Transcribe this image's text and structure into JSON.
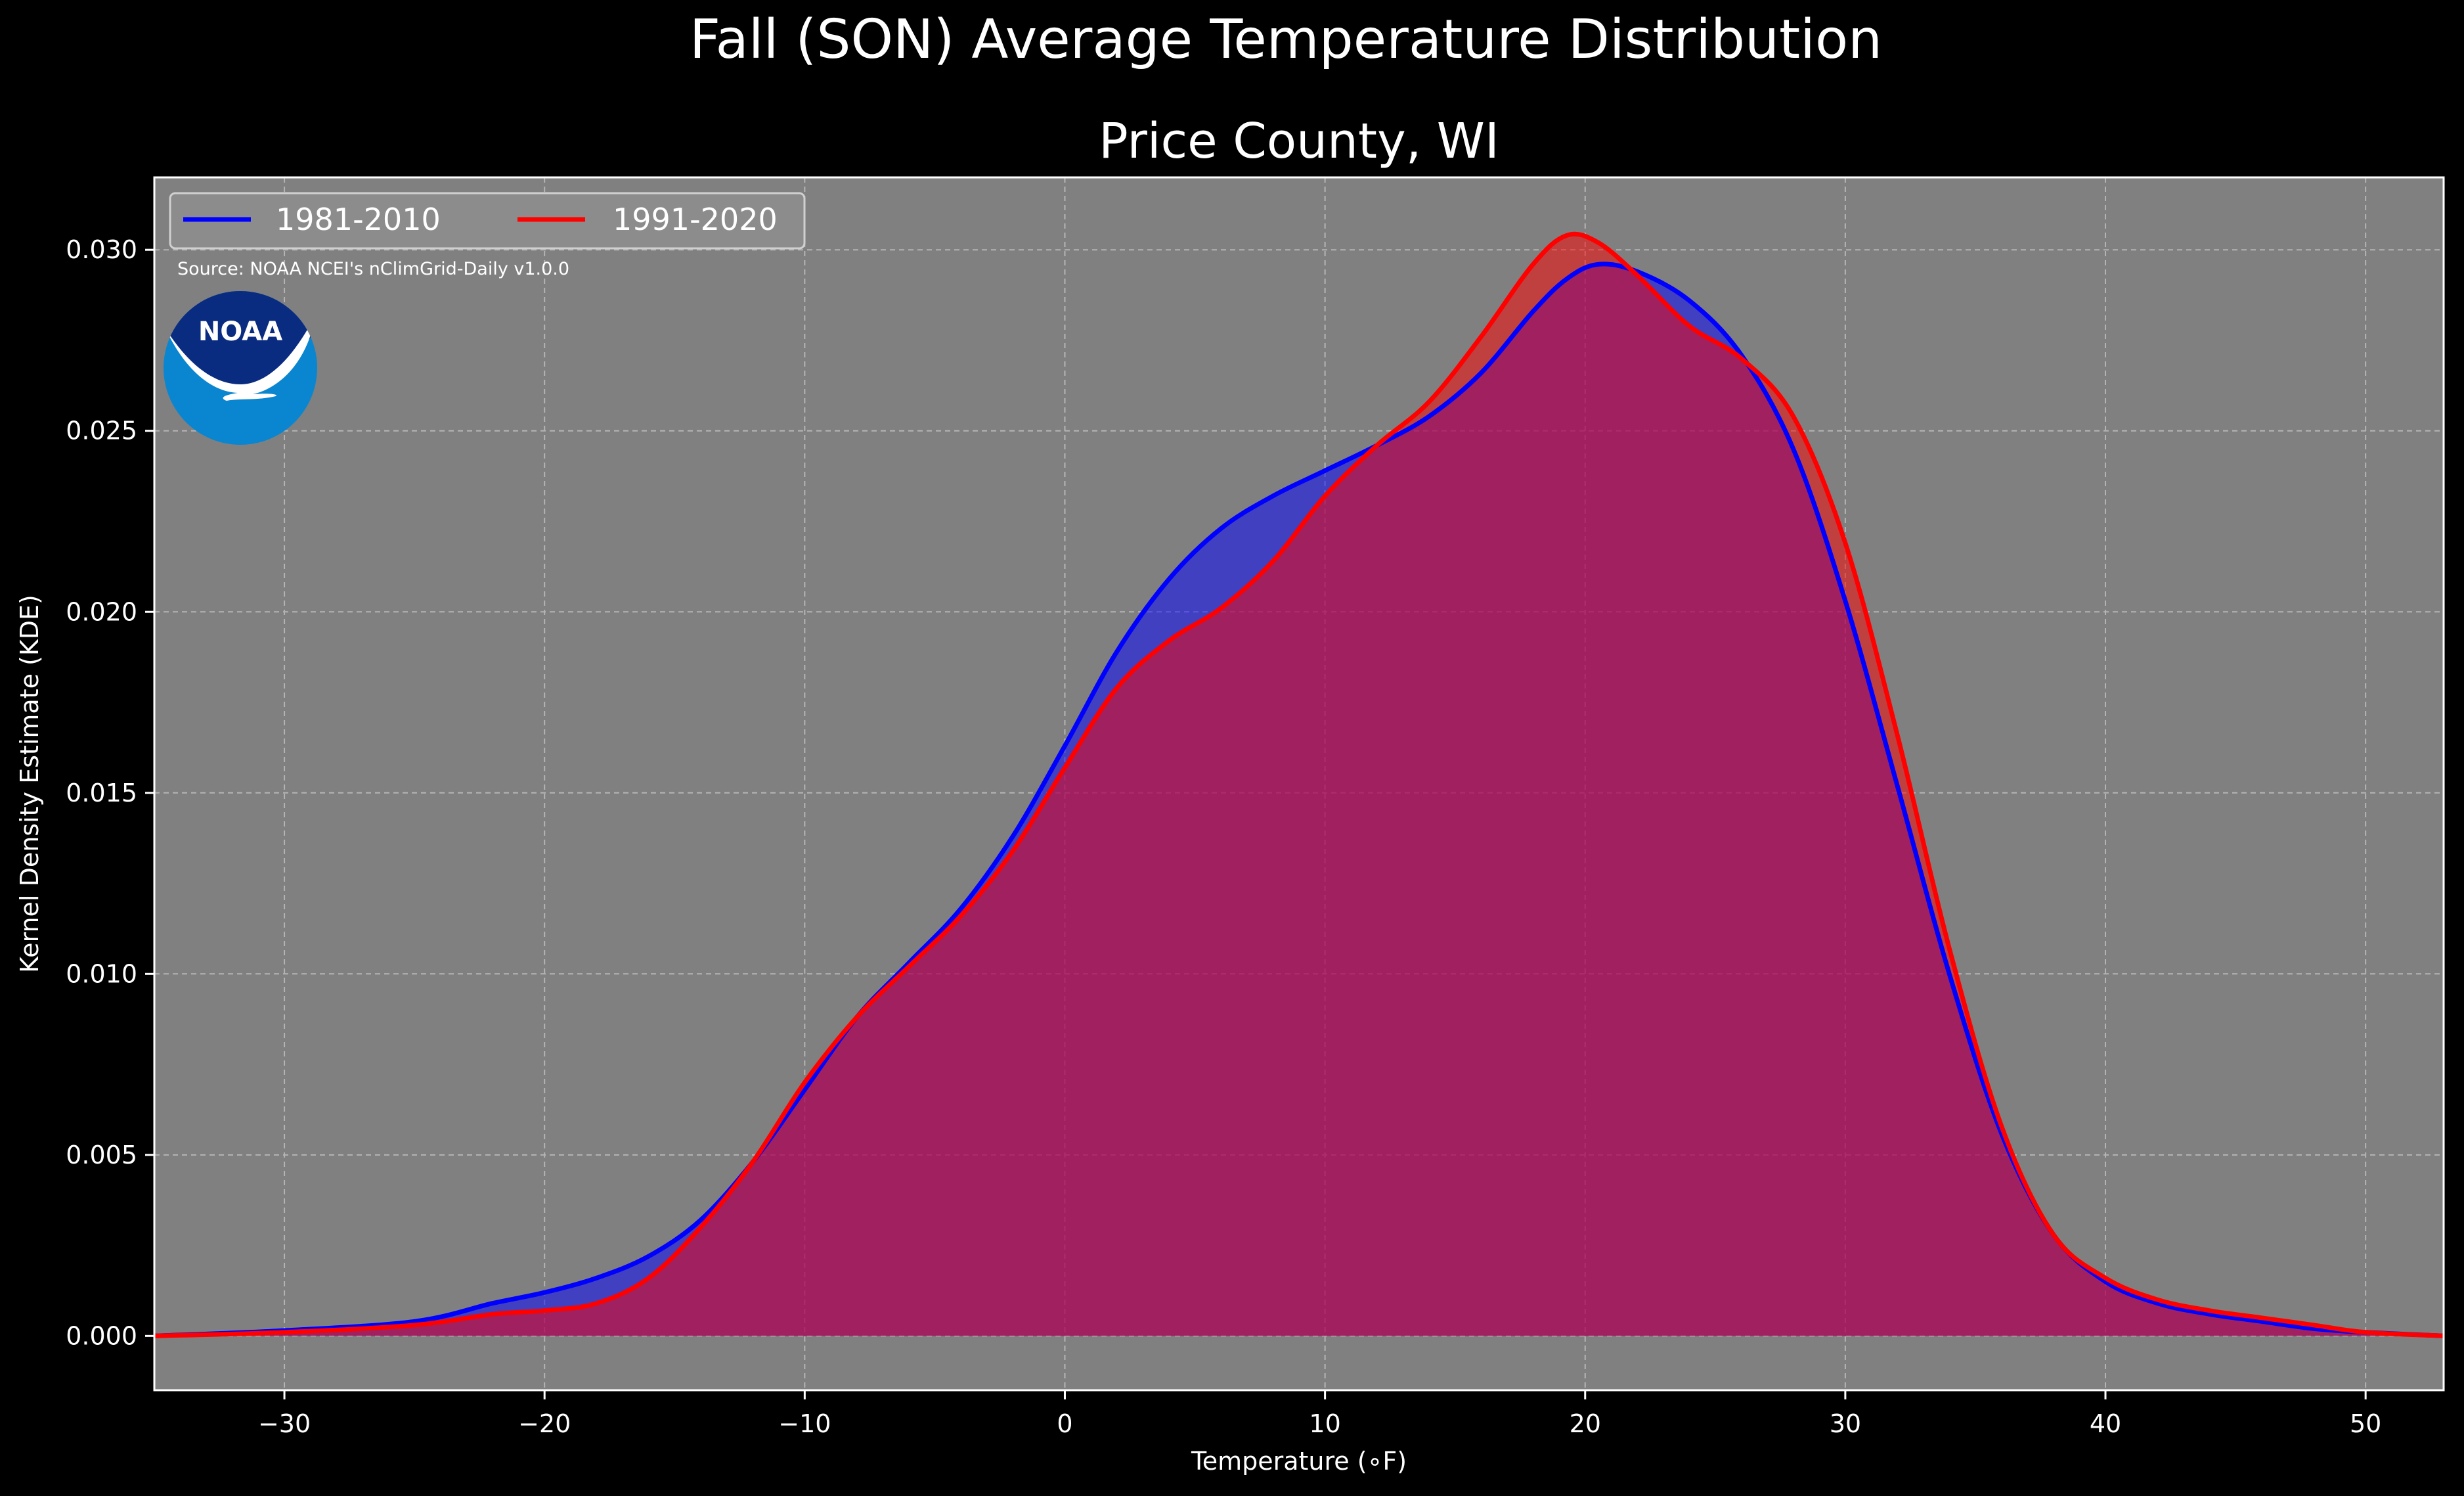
{
  "chart_data": {
    "type": "area",
    "suptitle": "Fall (SON) Average Temperature Distribution",
    "title": "Price County, WI",
    "xlabel": "Temperature ($^\\circ$F)",
    "xlabel_display": "Temperature (∘F)",
    "ylabel": "Kernel Density Estimate (KDE)",
    "xlim": [
      -35,
      53
    ],
    "ylim": [
      -0.0015,
      0.032
    ],
    "xticks": [
      -30,
      -20,
      -10,
      0,
      10,
      20,
      30,
      40,
      50
    ],
    "xtick_labels": [
      "−30",
      "−20",
      "−10",
      "0",
      "10",
      "20",
      "30",
      "40",
      "50"
    ],
    "yticks": [
      0.0,
      0.005,
      0.01,
      0.015,
      0.02,
      0.025,
      0.03
    ],
    "ytick_labels": [
      "0.000",
      "0.005",
      "0.010",
      "0.015",
      "0.020",
      "0.025",
      "0.030"
    ],
    "grid": true,
    "legend_position": "top-left",
    "source_note": "Source: NOAA NCEI's nClimGrid-Daily v1.0.0",
    "logo_text": "NOAA",
    "colors": {
      "background": "#000000",
      "plot_background": "#808080",
      "series_1981": "#0000ff",
      "series_1991": "#ff0000",
      "text": "#ffffff"
    },
    "x": [
      -35,
      -30,
      -25,
      -22,
      -20,
      -18,
      -16,
      -14,
      -12,
      -10,
      -8,
      -6,
      -4,
      -2,
      0,
      2,
      4,
      6,
      8,
      10,
      12,
      14,
      16,
      18,
      19.3,
      20.5,
      22,
      24,
      26,
      28,
      30,
      32,
      34,
      36,
      38,
      40,
      42,
      44,
      46,
      48,
      50,
      53
    ],
    "series": [
      {
        "name": "1981-2010",
        "color": "#0000ff",
        "values": [
          0.0,
          0.00015,
          0.0004,
          0.0009,
          0.0012,
          0.0016,
          0.0022,
          0.0032,
          0.0048,
          0.0068,
          0.0088,
          0.0103,
          0.0118,
          0.0138,
          0.0163,
          0.0189,
          0.0209,
          0.0223,
          0.0232,
          0.0239,
          0.0246,
          0.0254,
          0.0266,
          0.0283,
          0.0292,
          0.0296,
          0.0294,
          0.0286,
          0.0271,
          0.0245,
          0.0203,
          0.0152,
          0.01,
          0.0056,
          0.0028,
          0.0015,
          0.0009,
          0.0006,
          0.0004,
          0.0002,
          0.0001,
          0.0
        ]
      },
      {
        "name": "1991-2020",
        "color": "#ff0000",
        "values": [
          0.0,
          0.0001,
          0.0003,
          0.0006,
          0.0007,
          0.0009,
          0.0016,
          0.003,
          0.0048,
          0.007,
          0.0088,
          0.0102,
          0.0116,
          0.0134,
          0.0157,
          0.0179,
          0.0192,
          0.0201,
          0.0214,
          0.0232,
          0.0246,
          0.0258,
          0.0276,
          0.0296,
          0.0304,
          0.0302,
          0.0293,
          0.0279,
          0.027,
          0.0254,
          0.0219,
          0.0166,
          0.0107,
          0.0058,
          0.0028,
          0.0016,
          0.001,
          0.0007,
          0.0005,
          0.0003,
          0.0001,
          0.0
        ]
      }
    ]
  }
}
